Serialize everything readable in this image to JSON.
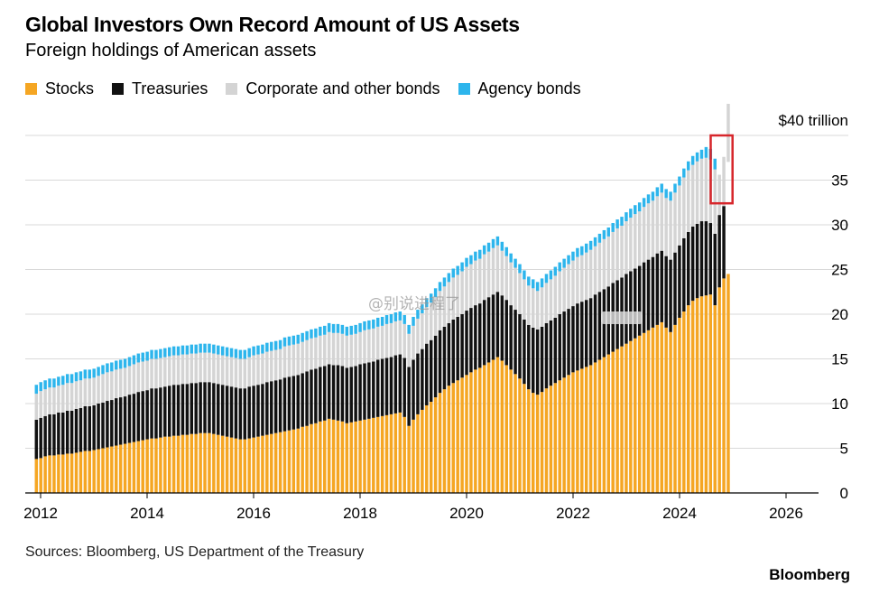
{
  "watermark": "@别说进程了",
  "chart_data": {
    "type": "bar",
    "stacked": true,
    "title": "Global Investors Own Record Amount of US Assets",
    "subtitle": "Foreign holdings of American assets",
    "ylim": [
      0,
      40
    ],
    "yticks": [
      0,
      5,
      10,
      15,
      20,
      25,
      30,
      35
    ],
    "top_tick_label": "$40 trillion",
    "xticks": [
      "2012",
      "2014",
      "2016",
      "2018",
      "2020",
      "2022",
      "2024",
      "2026"
    ],
    "grid": true,
    "legend_position": "top-left",
    "x_start": 2011.92,
    "x_step": 0.0833,
    "highlight_last_bars": 4,
    "highlight_color": "#d7262b",
    "series": [
      {
        "name": "Stocks",
        "color": "#f5a623",
        "values": [
          3.8,
          3.9,
          4.1,
          4.2,
          4.2,
          4.3,
          4.3,
          4.4,
          4.4,
          4.5,
          4.6,
          4.7,
          4.7,
          4.8,
          4.9,
          5.0,
          5.1,
          5.2,
          5.3,
          5.4,
          5.5,
          5.6,
          5.7,
          5.8,
          5.9,
          6.0,
          6.1,
          6.1,
          6.2,
          6.3,
          6.3,
          6.4,
          6.4,
          6.5,
          6.5,
          6.6,
          6.6,
          6.7,
          6.7,
          6.7,
          6.6,
          6.5,
          6.4,
          6.3,
          6.2,
          6.1,
          6.0,
          6.0,
          6.1,
          6.2,
          6.3,
          6.4,
          6.5,
          6.6,
          6.7,
          6.8,
          6.9,
          7.0,
          7.1,
          7.2,
          7.4,
          7.5,
          7.7,
          7.8,
          8.0,
          8.1,
          8.3,
          8.2,
          8.1,
          8.0,
          7.8,
          7.9,
          8.0,
          8.1,
          8.2,
          8.3,
          8.4,
          8.5,
          8.6,
          8.7,
          8.8,
          8.9,
          9.0,
          8.5,
          7.5,
          8.2,
          8.8,
          9.3,
          9.8,
          10.2,
          10.7,
          11.2,
          11.6,
          12.0,
          12.3,
          12.6,
          12.9,
          13.2,
          13.5,
          13.8,
          14.0,
          14.3,
          14.6,
          14.9,
          15.2,
          14.8,
          14.3,
          13.8,
          13.3,
          12.8,
          12.2,
          11.6,
          11.2,
          11.0,
          11.3,
          11.7,
          12.0,
          12.3,
          12.6,
          12.9,
          13.2,
          13.5,
          13.7,
          13.9,
          14.1,
          14.3,
          14.6,
          14.9,
          15.2,
          15.5,
          15.8,
          16.1,
          16.4,
          16.7,
          17.0,
          17.3,
          17.6,
          17.9,
          18.2,
          18.5,
          18.8,
          19.1,
          18.5,
          18.0,
          18.8,
          19.6,
          20.3,
          21.0,
          21.5,
          21.8,
          22.0,
          22.1,
          22.2,
          21.0,
          23.0,
          24.0,
          24.5
        ]
      },
      {
        "name": "Treasuries",
        "color": "#111111",
        "values": [
          4.4,
          4.5,
          4.5,
          4.6,
          4.6,
          4.7,
          4.7,
          4.8,
          4.8,
          4.9,
          4.9,
          5.0,
          5.0,
          5.0,
          5.1,
          5.1,
          5.2,
          5.2,
          5.3,
          5.3,
          5.3,
          5.4,
          5.4,
          5.5,
          5.5,
          5.5,
          5.6,
          5.6,
          5.6,
          5.6,
          5.7,
          5.7,
          5.7,
          5.7,
          5.7,
          5.7,
          5.7,
          5.7,
          5.7,
          5.7,
          5.7,
          5.7,
          5.7,
          5.7,
          5.7,
          5.7,
          5.7,
          5.7,
          5.8,
          5.8,
          5.8,
          5.8,
          5.9,
          5.9,
          5.9,
          5.9,
          6.0,
          6.0,
          6.0,
          6.0,
          6.0,
          6.1,
          6.1,
          6.1,
          6.1,
          6.1,
          6.1,
          6.1,
          6.2,
          6.2,
          6.2,
          6.2,
          6.2,
          6.3,
          6.3,
          6.3,
          6.3,
          6.4,
          6.4,
          6.4,
          6.4,
          6.5,
          6.5,
          6.6,
          6.6,
          6.7,
          6.8,
          6.8,
          6.9,
          6.9,
          6.9,
          7.0,
          7.0,
          7.0,
          7.1,
          7.1,
          7.1,
          7.2,
          7.2,
          7.2,
          7.2,
          7.3,
          7.3,
          7.3,
          7.3,
          7.3,
          7.3,
          7.2,
          7.2,
          7.2,
          7.2,
          7.2,
          7.3,
          7.3,
          7.3,
          7.3,
          7.3,
          7.3,
          7.4,
          7.4,
          7.4,
          7.4,
          7.5,
          7.5,
          7.5,
          7.5,
          7.6,
          7.6,
          7.6,
          7.6,
          7.7,
          7.7,
          7.7,
          7.8,
          7.8,
          7.8,
          7.8,
          7.9,
          7.9,
          7.9,
          8.0,
          8.0,
          8.0,
          8.1,
          8.1,
          8.1,
          8.2,
          8.2,
          8.3,
          8.3,
          8.4,
          8.3,
          8.0,
          8.0,
          8.1,
          8.1
        ]
      },
      {
        "name": "Corporate and other bonds",
        "color": "#d4d4d4",
        "values": [
          2.9,
          3.0,
          3.0,
          3.0,
          3.0,
          3.0,
          3.1,
          3.1,
          3.1,
          3.1,
          3.1,
          3.1,
          3.1,
          3.1,
          3.1,
          3.2,
          3.2,
          3.2,
          3.2,
          3.2,
          3.2,
          3.2,
          3.3,
          3.3,
          3.3,
          3.3,
          3.3,
          3.3,
          3.3,
          3.3,
          3.3,
          3.3,
          3.3,
          3.3,
          3.3,
          3.3,
          3.3,
          3.3,
          3.3,
          3.3,
          3.3,
          3.3,
          3.3,
          3.3,
          3.3,
          3.3,
          3.3,
          3.3,
          3.3,
          3.4,
          3.4,
          3.4,
          3.4,
          3.4,
          3.4,
          3.4,
          3.5,
          3.5,
          3.5,
          3.5,
          3.5,
          3.5,
          3.5,
          3.5,
          3.5,
          3.5,
          3.6,
          3.6,
          3.6,
          3.6,
          3.6,
          3.6,
          3.6,
          3.6,
          3.7,
          3.7,
          3.7,
          3.7,
          3.7,
          3.8,
          3.8,
          3.8,
          3.8,
          3.8,
          3.7,
          3.8,
          3.9,
          4.0,
          4.1,
          4.2,
          4.3,
          4.4,
          4.5,
          4.6,
          4.7,
          4.7,
          4.8,
          4.9,
          4.9,
          5.0,
          5.0,
          5.1,
          5.1,
          5.2,
          5.2,
          5.0,
          4.9,
          4.8,
          4.7,
          4.6,
          4.5,
          4.4,
          4.4,
          4.3,
          4.4,
          4.5,
          4.6,
          4.7,
          4.8,
          4.9,
          5.0,
          5.1,
          5.2,
          5.2,
          5.3,
          5.4,
          5.4,
          5.5,
          5.6,
          5.6,
          5.7,
          5.8,
          5.8,
          5.9,
          6.0,
          6.1,
          6.1,
          6.2,
          6.3,
          6.3,
          6.4,
          6.5,
          6.5,
          6.6,
          6.7,
          6.7,
          6.8,
          6.9,
          6.9,
          7.0,
          7.0,
          7.1,
          7.1,
          7.2,
          4.5,
          5.5,
          6.5,
          7.0
        ]
      },
      {
        "name": "Agency bonds",
        "color": "#2db5ec",
        "values": [
          1.0,
          1.0,
          1.0,
          1.0,
          1.0,
          1.0,
          1.0,
          1.0,
          1.0,
          1.0,
          1.0,
          1.0,
          1.0,
          1.0,
          1.0,
          1.0,
          1.0,
          1.0,
          1.0,
          1.0,
          1.0,
          1.0,
          1.0,
          1.0,
          1.0,
          1.0,
          1.0,
          1.0,
          1.0,
          1.0,
          1.0,
          1.0,
          1.0,
          1.0,
          1.0,
          1.0,
          1.0,
          1.0,
          1.0,
          1.0,
          1.0,
          1.0,
          1.0,
          1.0,
          1.0,
          1.0,
          1.0,
          1.0,
          1.0,
          1.0,
          1.0,
          1.0,
          1.0,
          1.0,
          1.0,
          1.0,
          1.0,
          1.0,
          1.0,
          1.0,
          1.0,
          1.0,
          1.0,
          1.0,
          1.0,
          1.0,
          1.0,
          1.0,
          1.0,
          1.0,
          1.0,
          1.0,
          1.0,
          1.0,
          1.0,
          1.0,
          1.0,
          1.0,
          1.0,
          1.0,
          1.0,
          1.0,
          1.0,
          1.0,
          1.0,
          1.0,
          1.0,
          1.0,
          1.0,
          1.0,
          1.0,
          1.0,
          1.0,
          1.0,
          1.0,
          1.0,
          1.0,
          1.0,
          1.0,
          1.0,
          1.0,
          1.0,
          1.0,
          1.0,
          1.0,
          1.0,
          1.0,
          1.0,
          1.0,
          1.0,
          1.0,
          1.0,
          1.0,
          1.0,
          1.0,
          1.0,
          1.0,
          1.0,
          1.0,
          1.0,
          1.0,
          1.0,
          1.0,
          1.0,
          1.0,
          1.0,
          1.0,
          1.0,
          1.0,
          1.0,
          1.0,
          1.0,
          1.0,
          1.0,
          1.0,
          1.0,
          1.0,
          1.0,
          1.0,
          1.0,
          1.0,
          1.0,
          1.0,
          1.0,
          1.0,
          1.0,
          1.0,
          1.0,
          1.0,
          1.0,
          1.0,
          1.2,
          1.2,
          1.2
        ]
      }
    ]
  },
  "source": "Sources: Bloomberg, US Department of the Treasury",
  "brand": "Bloomberg"
}
